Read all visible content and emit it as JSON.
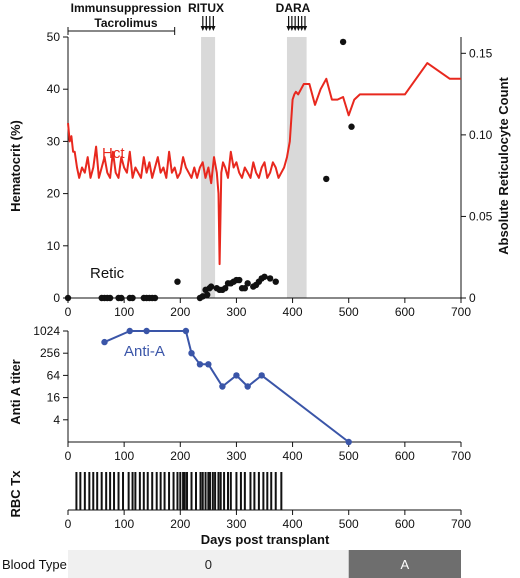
{
  "chart_data": [
    {
      "type": "line",
      "panel": "top",
      "ylabel": "Hematocrit (%)",
      "y2label": "Absolute Reticulocyte Count",
      "xlim": [
        0,
        700
      ],
      "ylim": [
        0,
        50
      ],
      "y2lim": [
        0,
        0.16
      ],
      "xticks": [
        0,
        100,
        200,
        300,
        400,
        500,
        600,
        700
      ],
      "yticks": [
        0,
        10,
        20,
        30,
        40,
        50
      ],
      "y2ticks": [
        0,
        0.05,
        0.1,
        0.15
      ],
      "annotations": {
        "immunosuppression": "Immunsuppression",
        "tacrolimus": "Tacrolimus",
        "tacrolimus_range": [
          0,
          190
        ],
        "ritux": "RITUX",
        "ritux_range": [
          237,
          262
        ],
        "dara": "DARA",
        "dara_range": [
          390,
          425
        ]
      },
      "series": [
        {
          "name": "Hct",
          "color": "#e8281e",
          "axis": "left",
          "x": [
            0,
            3,
            6,
            9,
            12,
            16,
            20,
            25,
            30,
            35,
            40,
            45,
            50,
            55,
            60,
            65,
            70,
            75,
            80,
            85,
            90,
            95,
            100,
            105,
            110,
            115,
            120,
            125,
            130,
            135,
            140,
            145,
            150,
            155,
            160,
            165,
            170,
            175,
            180,
            185,
            190,
            195,
            200,
            205,
            210,
            215,
            220,
            225,
            230,
            235,
            240,
            245,
            250,
            255,
            260,
            265,
            268,
            270,
            273,
            276,
            280,
            285,
            290,
            295,
            300,
            305,
            310,
            315,
            320,
            325,
            330,
            335,
            340,
            345,
            350,
            355,
            360,
            365,
            370,
            375,
            380,
            385,
            390,
            395,
            400,
            403,
            406,
            410,
            415,
            420,
            425,
            430,
            440,
            450,
            460,
            470,
            480,
            490,
            500,
            510,
            520,
            540,
            560,
            600,
            640,
            680,
            700
          ],
          "y": [
            33.5,
            30,
            31,
            28,
            28,
            25,
            23,
            25,
            24,
            27,
            23,
            25,
            29,
            23,
            25,
            27,
            24,
            23,
            28,
            24,
            23,
            27,
            25,
            24,
            28,
            23,
            25,
            24,
            23,
            27,
            24,
            26,
            23,
            25,
            27,
            24,
            25,
            23,
            28,
            24,
            25,
            23,
            24,
            27,
            25,
            24,
            23,
            25,
            23,
            25,
            26,
            23,
            25,
            22,
            27,
            24,
            20,
            6.5,
            24,
            26,
            25,
            23,
            28,
            25,
            26,
            24,
            23,
            25,
            24,
            23,
            26,
            24,
            23,
            25,
            26,
            23,
            24,
            26,
            25,
            23,
            24,
            25,
            27,
            30,
            38,
            39,
            39.5,
            39,
            40,
            41,
            41,
            41,
            37,
            40,
            42,
            38,
            38,
            38.5,
            35,
            38,
            39,
            39,
            39,
            39,
            45,
            42,
            42
          ]
        },
        {
          "name": "Retic",
          "color": "#111111",
          "axis": "right",
          "x": [
            0,
            60,
            65,
            70,
            75,
            90,
            95,
            110,
            115,
            135,
            140,
            145,
            150,
            155,
            195,
            235,
            240,
            245,
            248,
            252,
            255,
            265,
            270,
            275,
            280,
            285,
            290,
            295,
            300,
            305,
            310,
            315,
            320,
            330,
            335,
            340,
            345,
            350,
            360,
            370,
            460,
            490,
            505
          ],
          "y": [
            0.0,
            0.0,
            0.0,
            0.0,
            0.0,
            0.0,
            0.0,
            0.0,
            0.0,
            0.0,
            0.0,
            0.0,
            0.0,
            0.0,
            0.01,
            0.0,
            0.001,
            0.005,
            0.002,
            0.006,
            0.007,
            0.006,
            0.005,
            0.005,
            0.006,
            0.009,
            0.009,
            0.01,
            0.011,
            0.011,
            0.006,
            0.006,
            0.009,
            0.007,
            0.008,
            0.01,
            0.012,
            0.013,
            0.012,
            0.01,
            0.073,
            0.157,
            0.105
          ]
        }
      ]
    },
    {
      "type": "line",
      "panel": "middle",
      "ylabel": "Anti A titer",
      "xlim": [
        0,
        700
      ],
      "yscale": "log2",
      "yticks": [
        4,
        16,
        64,
        256,
        1024
      ],
      "xticks": [
        0,
        100,
        200,
        300,
        400,
        500,
        600,
        700
      ],
      "series": [
        {
          "name": "Anti-A",
          "color": "#3a55a8",
          "x": [
            65,
            110,
            140,
            210,
            220,
            235,
            250,
            275,
            300,
            320,
            345,
            500
          ],
          "y": [
            512,
            1024,
            1024,
            1024,
            256,
            128,
            128,
            32,
            64,
            32,
            64,
            1
          ]
        }
      ]
    },
    {
      "type": "event",
      "panel": "bottom",
      "ylabel": "RBC Tx",
      "xlabel": "Days post transplant",
      "xlim": [
        0,
        700
      ],
      "xticks": [
        0,
        100,
        200,
        300,
        400,
        500,
        600,
        700
      ],
      "events": [
        15,
        22,
        30,
        38,
        45,
        52,
        60,
        68,
        75,
        82,
        90,
        98,
        108,
        115,
        120,
        128,
        135,
        142,
        150,
        158,
        165,
        172,
        180,
        188,
        195,
        200,
        205,
        208,
        212,
        220,
        228,
        236,
        240,
        245,
        250,
        253,
        258,
        262,
        268,
        272,
        278,
        285,
        290,
        300,
        308,
        315,
        325,
        332,
        340,
        348,
        355,
        362,
        370,
        380
      ]
    }
  ],
  "blood_type": {
    "label": "Blood Type",
    "segments": [
      {
        "label": "0",
        "start": 0,
        "end": 500,
        "color": "#f0f0f0",
        "text_color": "#222222"
      },
      {
        "label": "A",
        "start": 500,
        "end": 700,
        "color": "#6e6e6e",
        "text_color": "#ffffff"
      }
    ]
  },
  "labels": {
    "hct": "Hct",
    "retic": "Retic",
    "antia": "Anti-A"
  }
}
